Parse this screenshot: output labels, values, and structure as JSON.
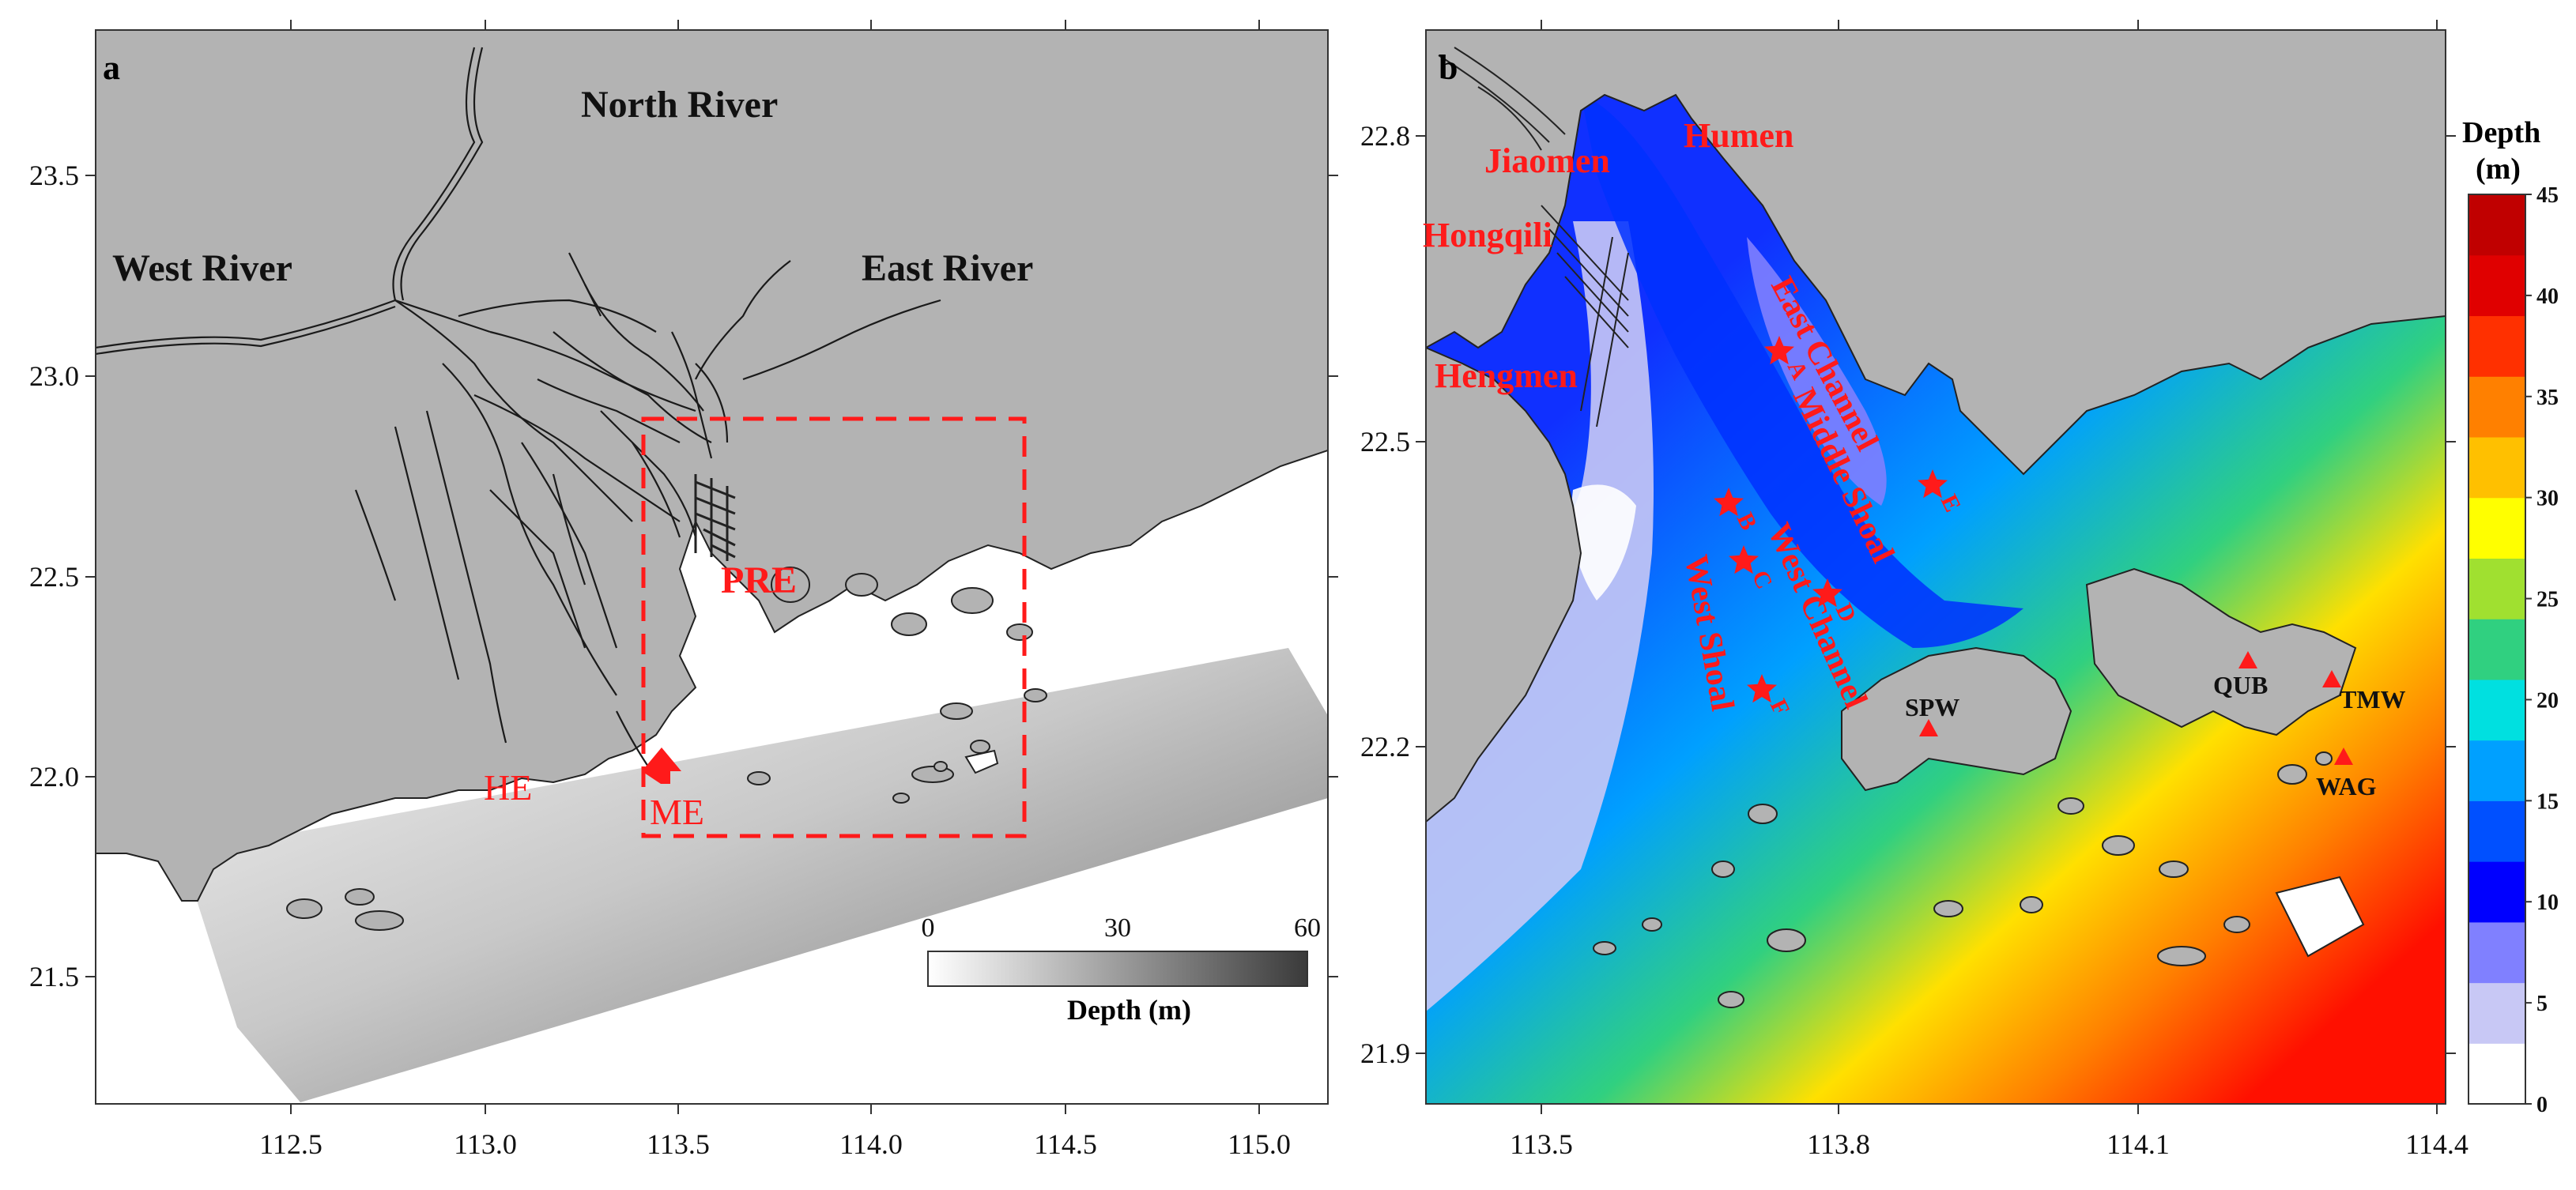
{
  "panel_a": {
    "label": "a",
    "x_ticks": [
      "112.5",
      "113.0",
      "113.5",
      "114.0",
      "114.5",
      "115.0"
    ],
    "y_ticks": [
      "23.5",
      "23.0",
      "22.5",
      "22.0",
      "21.5"
    ],
    "rivers": {
      "north": "North River",
      "west": "West River",
      "east": "East River"
    },
    "labels": {
      "pre": "PRE",
      "he": "HE",
      "me": "ME"
    },
    "depth_scale": {
      "title": "Depth (m)",
      "ticks": [
        "0",
        "30",
        "60"
      ],
      "min": 0,
      "max": 60,
      "colors": [
        "#ffffff",
        "#3a3a3a"
      ]
    },
    "colors": {
      "land": "#b3b3b3",
      "accent": "#ff1a1a"
    }
  },
  "panel_b": {
    "label": "b",
    "x_ticks": [
      "113.5",
      "113.8",
      "114.1",
      "114.4"
    ],
    "y_ticks": [
      "22.8",
      "22.5",
      "22.2",
      "21.9"
    ],
    "place_names": {
      "humen": "Humen",
      "jiaomen": "Jiaomen",
      "hongqili": "Hongqili",
      "hengmen": "Hengmen"
    },
    "channels": {
      "east_channel": "East Channel",
      "middle_shoal": "Middle Shoal",
      "west_channel": "West Channel",
      "west_shoal": "West Shoal"
    },
    "stations": [
      "A",
      "B",
      "C",
      "D",
      "E",
      "F"
    ],
    "tide_gauges": [
      "SPW",
      "QUB",
      "TMW",
      "WAG"
    ],
    "depth_scale": {
      "title_line1": "Depth",
      "title_line2": "(m)",
      "ticks": [
        "45",
        "40",
        "35",
        "30",
        "25",
        "20",
        "15",
        "10",
        "5",
        "0"
      ],
      "min": 0,
      "max": 45,
      "colors": [
        "#ffffff",
        "#c8c8f5",
        "#8080ff",
        "#0000ff",
        "#0050ff",
        "#00a0ff",
        "#00e0e0",
        "#30d080",
        "#a0e030",
        "#ffff00",
        "#ffc000",
        "#ff8000",
        "#ff3000",
        "#e00000",
        "#c00000"
      ]
    },
    "colors": {
      "land": "#b3b3b3",
      "accent": "#ff1a1a"
    }
  }
}
